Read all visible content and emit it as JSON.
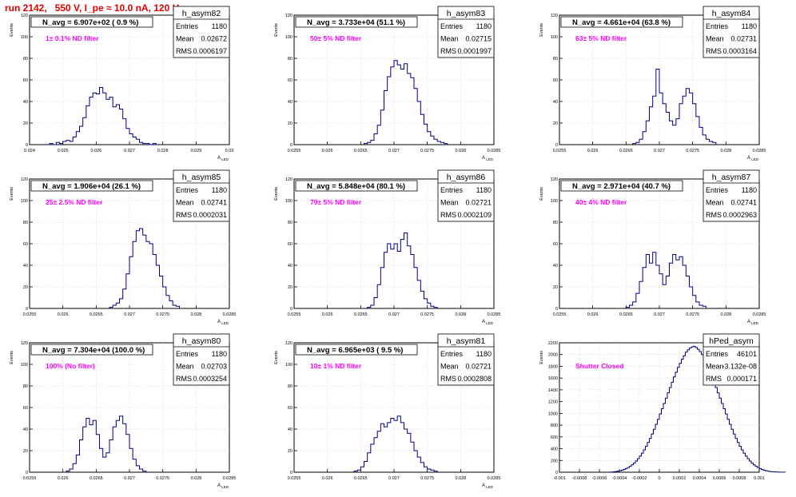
{
  "title": "run 2142,   550 V, I_pe ≈ 10.0 nA, 120 Hz",
  "colors": {
    "title": "#e00000",
    "hist": "#000080",
    "annot": "#ff00ff",
    "grid": "#c8c8c8"
  },
  "chart_data": [
    {
      "type": "histogram",
      "name": "h_asym82",
      "ylabel": "Events",
      "xlabel": "A_LED",
      "xlim": [
        0.024,
        0.03
      ],
      "ylim": [
        0,
        120
      ],
      "xticks": [
        "0.024",
        "0.025",
        "0.026",
        "0.027",
        "0.028",
        "0.029",
        "0.03"
      ],
      "yticks": [
        "0",
        "20",
        "40",
        "60",
        "80",
        "100",
        "120"
      ],
      "navg": "N_avg = 6.907e+02 ( 0.9 %)",
      "annotation": "1± 0.1% ND filter",
      "stats": {
        "entries": "1180",
        "mean": "0.02672",
        "rms": "0.0006197"
      },
      "bins": {
        "start": 0.0246,
        "width": 0.0001,
        "counts": [
          1,
          0,
          2,
          1,
          3,
          4,
          3,
          7,
          12,
          17,
          25,
          36,
          44,
          48,
          47,
          53,
          48,
          42,
          44,
          35,
          37,
          33,
          24,
          15,
          10,
          7,
          5,
          2,
          1,
          1,
          0,
          1
        ]
      }
    },
    {
      "type": "histogram",
      "name": "h_asym83",
      "ylabel": "Events",
      "xlabel": "A_LED",
      "xlim": [
        0.0255,
        0.0285
      ],
      "ylim": [
        0,
        120
      ],
      "xticks": [
        "0.0255",
        "0.026",
        "0.0265",
        "0.027",
        "0.0275",
        "0.028",
        "0.0285"
      ],
      "yticks": [
        "0",
        "20",
        "40",
        "60",
        "80",
        "100",
        "120"
      ],
      "navg": "N_avg = 3.733e+04 (51.1 %)",
      "annotation": "50± 5% ND filter",
      "stats": {
        "entries": "1180",
        "mean": "0.02715",
        "rms": "0.0001997"
      },
      "bins": {
        "start": 0.02655,
        "width": 5e-05,
        "counts": [
          1,
          2,
          4,
          10,
          18,
          32,
          50,
          63,
          72,
          78,
          74,
          70,
          75,
          66,
          62,
          52,
          40,
          28,
          19,
          12,
          8,
          5,
          3,
          2,
          1
        ]
      }
    },
    {
      "type": "histogram",
      "name": "h_asym84",
      "ylabel": "Events",
      "xlabel": "A_LED",
      "xlim": [
        0.0255,
        0.0285
      ],
      "ylim": [
        0,
        120
      ],
      "xticks": [
        "0.0255",
        "0.026",
        "0.0265",
        "0.027",
        "0.0275",
        "0.028",
        "0.0285"
      ],
      "yticks": [
        "0",
        "20",
        "40",
        "60",
        "80",
        "100",
        "120"
      ],
      "navg": "N_avg = 4.661e+04 (63.8 %)",
      "annotation": "63± 5% ND filter",
      "stats": {
        "entries": "1180",
        "mean": "0.02731",
        "rms": "0.0003164"
      },
      "bins": {
        "start": 0.0266,
        "width": 5e-05,
        "counts": [
          1,
          2,
          5,
          12,
          22,
          35,
          45,
          70,
          48,
          38,
          30,
          22,
          18,
          24,
          38,
          45,
          52,
          48,
          38,
          26,
          16,
          9,
          5,
          3,
          2
        ]
      }
    },
    {
      "type": "histogram",
      "name": "h_asym85",
      "ylabel": "Events",
      "xlabel": "A_LED",
      "xlim": [
        0.0255,
        0.0285
      ],
      "ylim": [
        0,
        120
      ],
      "xticks": [
        "0.0255",
        "0.026",
        "0.0265",
        "0.027",
        "0.0275",
        "0.028",
        "0.0285"
      ],
      "yticks": [
        "0",
        "20",
        "40",
        "60",
        "80",
        "100",
        "120"
      ],
      "navg": "N_avg = 1.906e+04 (26.1 %)",
      "annotation": "25± 2.5% ND filter",
      "stats": {
        "entries": "1180",
        "mean": "0.02741",
        "rms": "0.0002031"
      },
      "bins": {
        "start": 0.0267,
        "width": 5e-05,
        "counts": [
          1,
          3,
          5,
          9,
          18,
          32,
          48,
          62,
          72,
          74,
          68,
          62,
          60,
          50,
          40,
          30,
          20,
          12,
          7,
          3,
          2
        ]
      }
    },
    {
      "type": "histogram",
      "name": "h_asym86",
      "ylabel": "Events",
      "xlabel": "A_LED",
      "xlim": [
        0.0255,
        0.0285
      ],
      "ylim": [
        0,
        120
      ],
      "xticks": [
        "0.0255",
        "0.026",
        "0.0265",
        "0.027",
        "0.0275",
        "0.028",
        "0.0285"
      ],
      "yticks": [
        "0",
        "20",
        "40",
        "60",
        "80",
        "100",
        "120"
      ],
      "navg": "N_avg = 5.848e+04 (80.1 %)",
      "annotation": "79± 5% ND filter",
      "stats": {
        "entries": "1180",
        "mean": "0.02721",
        "rms": "0.0002109"
      },
      "bins": {
        "start": 0.0266,
        "width": 5e-05,
        "counts": [
          1,
          3,
          10,
          22,
          38,
          52,
          60,
          55,
          60,
          53,
          64,
          70,
          58,
          50,
          38,
          26,
          16,
          9,
          5,
          2,
          1
        ]
      }
    },
    {
      "type": "histogram",
      "name": "h_asym87",
      "ylabel": "Events",
      "xlabel": "A_LED",
      "xlim": [
        0.0255,
        0.0285
      ],
      "ylim": [
        0,
        120
      ],
      "xticks": [
        "0.0255",
        "0.026",
        "0.0265",
        "0.027",
        "0.0275",
        "0.028",
        "0.0285"
      ],
      "yticks": [
        "0",
        "20",
        "40",
        "60",
        "80",
        "100",
        "120"
      ],
      "navg": "N_avg = 2.971e+04 (40.7 %)",
      "annotation": "40± 4% ND filter",
      "stats": {
        "entries": "1180",
        "mean": "0.02741",
        "rms": "0.0002963"
      },
      "bins": {
        "start": 0.0265,
        "width": 5e-05,
        "counts": [
          1,
          3,
          6,
          14,
          25,
          38,
          50,
          42,
          52,
          40,
          32,
          22,
          30,
          42,
          50,
          45,
          48,
          40,
          30,
          20,
          12,
          6,
          3,
          2
        ]
      }
    },
    {
      "type": "histogram",
      "name": "h_asym80",
      "ylabel": "Events",
      "xlabel": "A_LED",
      "xlim": [
        0.0255,
        0.0285
      ],
      "ylim": [
        0,
        120
      ],
      "xticks": [
        "0.0255",
        "0.026",
        "0.0265",
        "0.027",
        "0.0275",
        "0.028",
        "0.0285"
      ],
      "yticks": [
        "0",
        "20",
        "40",
        "60",
        "80",
        "100",
        "120"
      ],
      "navg": "N_avg = 7.304e+04 (100.0 %)",
      "annotation": "100% (No filter)",
      "stats": {
        "entries": "1180",
        "mean": "0.02703",
        "rms": "0.0003254"
      },
      "bins": {
        "start": 0.02605,
        "width": 5e-05,
        "counts": [
          1,
          3,
          8,
          16,
          30,
          42,
          50,
          44,
          48,
          35,
          22,
          14,
          18,
          30,
          42,
          48,
          52,
          45,
          35,
          22,
          12,
          6,
          3,
          1
        ]
      }
    },
    {
      "type": "histogram",
      "name": "h_asym81",
      "ylabel": "Events",
      "xlabel": "A_LED",
      "xlim": [
        0.0255,
        0.0285
      ],
      "ylim": [
        0,
        120
      ],
      "xticks": [
        "0.0255",
        "0.026",
        "0.0265",
        "0.027",
        "0.0275",
        "0.028",
        "0.0285"
      ],
      "yticks": [
        "0",
        "20",
        "40",
        "60",
        "80",
        "100",
        "120"
      ],
      "navg": "N_avg = 6.965e+03 ( 9.5 %)",
      "annotation": "10± 1% ND filter",
      "stats": {
        "entries": "1180",
        "mean": "0.02721",
        "rms": "0.0002808"
      },
      "bins": {
        "start": 0.0264,
        "width": 5e-05,
        "counts": [
          1,
          2,
          5,
          10,
          18,
          26,
          32,
          38,
          45,
          42,
          46,
          50,
          48,
          52,
          46,
          40,
          36,
          28,
          20,
          14,
          9,
          5,
          3,
          2,
          1
        ]
      }
    },
    {
      "type": "histogram",
      "name": "hPed_asym",
      "ylabel": "Events",
      "xlabel": "",
      "xlim": [
        -0.001,
        0.001
      ],
      "ylim": [
        0,
        2200
      ],
      "xticks": [
        "-0.001",
        "-0.0008",
        "-0.0006",
        "-0.0004",
        "-0.0002",
        "0",
        "0.0002",
        "0.0004",
        "0.0006",
        "0.0008",
        "0.001"
      ],
      "yticks": [
        "0",
        "200",
        "400",
        "600",
        "800",
        "1000",
        "1200",
        "1400",
        "1600",
        "1800",
        "2000",
        "2200"
      ],
      "navg": "",
      "annotation": "Shutter Closed",
      "stats": {
        "entries": "46101",
        "mean": "-3.132e-08",
        "rms": "0.000171"
      },
      "bins": {
        "start": -0.0005,
        "width": 2e-05,
        "counts": [
          2,
          4,
          8,
          12,
          18,
          25,
          35,
          48,
          62,
          80,
          100,
          125,
          155,
          190,
          230,
          275,
          325,
          380,
          440,
          505,
          575,
          650,
          730,
          815,
          900,
          990,
          1080,
          1170,
          1260,
          1350,
          1440,
          1530,
          1620,
          1700,
          1780,
          1850,
          1920,
          1980,
          2040,
          2080,
          2110,
          2130,
          2140,
          2120,
          2090,
          2050,
          2000,
          1940,
          1870,
          1790,
          1710,
          1620,
          1530,
          1440,
          1350,
          1260,
          1170,
          1080,
          990,
          900,
          815,
          730,
          650,
          575,
          505,
          440,
          380,
          325,
          275,
          230,
          190,
          155,
          125,
          100,
          80,
          62,
          48,
          35,
          25,
          18,
          12,
          8,
          6,
          4,
          3,
          2,
          1,
          1
        ]
      }
    }
  ]
}
